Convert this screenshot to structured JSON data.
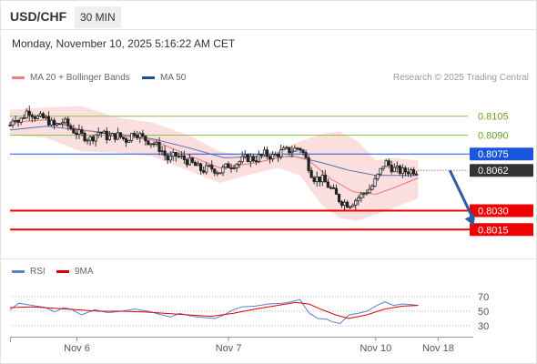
{
  "header": {
    "symbol": "USD/CHF",
    "timeframe": "30 MIN",
    "datetime": "Monday, November 10, 2025 5:16:22 AM CET"
  },
  "legend": {
    "main": [
      {
        "label": "MA 20 + Bollinger Bands",
        "color": "#f08080"
      },
      {
        "label": "MA 50",
        "color": "#1f4e96"
      }
    ],
    "rsi": [
      {
        "label": "RSI",
        "color": "#5b7fd6"
      },
      {
        "label": "9MA",
        "color": "#e00000"
      }
    ]
  },
  "credit": "Research © 2025 Trading Central",
  "chart_data": [
    {
      "type": "candlestick",
      "ylim": [
        0.7995,
        0.8125
      ],
      "x_ticks": [
        {
          "label": "Nov 6",
          "t": 0.15
        },
        {
          "label": "Nov 7",
          "t": 0.49
        },
        {
          "label": "Nov 10",
          "t": 0.82
        },
        {
          "label": "Nov 18",
          "t": 0.96
        }
      ],
      "levels": [
        {
          "value": 0.8105,
          "label": "0.8105",
          "color": "#8bc34a",
          "style": "thin",
          "text_color": "#6aa121"
        },
        {
          "value": 0.809,
          "label": "0.8090",
          "color": "#8bc34a",
          "style": "thin",
          "text_color": "#6aa121"
        },
        {
          "value": 0.8075,
          "label": "0.8075",
          "color": "#1a56db",
          "style": "badge",
          "text_color": "#ffffff"
        },
        {
          "value": 0.8062,
          "label": "0.8062",
          "color": "#333333",
          "style": "dotted",
          "text_color": "#ffffff"
        },
        {
          "value": 0.803,
          "label": "0.8030",
          "color": "#f00000",
          "style": "badge",
          "text_color": "#ffffff"
        },
        {
          "value": 0.8015,
          "label": "0.8015",
          "color": "#f00000",
          "style": "badge",
          "text_color": "#ffffff"
        }
      ],
      "projection": {
        "from": [
          0.97,
          0.8062
        ],
        "to": [
          1.04,
          0.8018
        ],
        "color": "#2d5aa8"
      },
      "price_path": [
        [
          0.0,
          0.8098
        ],
        [
          0.01,
          0.8106
        ],
        [
          0.02,
          0.81
        ],
        [
          0.04,
          0.811
        ],
        [
          0.06,
          0.8104
        ],
        [
          0.08,
          0.8103
        ],
        [
          0.1,
          0.8097
        ],
        [
          0.12,
          0.8101
        ],
        [
          0.14,
          0.8094
        ],
        [
          0.16,
          0.809
        ],
        [
          0.18,
          0.8087
        ],
        [
          0.2,
          0.8093
        ],
        [
          0.22,
          0.8088
        ],
        [
          0.24,
          0.809
        ],
        [
          0.26,
          0.8086
        ],
        [
          0.28,
          0.8093
        ],
        [
          0.3,
          0.8087
        ],
        [
          0.32,
          0.8084
        ],
        [
          0.34,
          0.8078
        ],
        [
          0.355,
          0.807
        ],
        [
          0.37,
          0.8074
        ],
        [
          0.39,
          0.8071
        ],
        [
          0.41,
          0.8067
        ],
        [
          0.43,
          0.8062
        ],
        [
          0.45,
          0.8064
        ],
        [
          0.47,
          0.8061
        ],
        [
          0.49,
          0.8066
        ],
        [
          0.51,
          0.8068
        ],
        [
          0.53,
          0.8072
        ],
        [
          0.55,
          0.8071
        ],
        [
          0.57,
          0.8075
        ],
        [
          0.59,
          0.8073
        ],
        [
          0.61,
          0.8077
        ],
        [
          0.63,
          0.8078
        ],
        [
          0.65,
          0.808
        ],
        [
          0.66,
          0.8074
        ],
        [
          0.67,
          0.8065
        ],
        [
          0.68,
          0.8056
        ],
        [
          0.7,
          0.8055
        ],
        [
          0.72,
          0.8047
        ],
        [
          0.74,
          0.8038
        ],
        [
          0.76,
          0.8035
        ],
        [
          0.78,
          0.804
        ],
        [
          0.8,
          0.8046
        ],
        [
          0.81,
          0.8048
        ],
        [
          0.83,
          0.8061
        ],
        [
          0.84,
          0.8069
        ],
        [
          0.86,
          0.8063
        ],
        [
          0.88,
          0.8061
        ],
        [
          0.9,
          0.8062
        ],
        [
          0.915,
          0.8062
        ]
      ],
      "ma20": [
        [
          0.0,
          0.81
        ],
        [
          0.08,
          0.8102
        ],
        [
          0.16,
          0.8094
        ],
        [
          0.24,
          0.809
        ],
        [
          0.32,
          0.8086
        ],
        [
          0.4,
          0.8074
        ],
        [
          0.47,
          0.8064
        ],
        [
          0.55,
          0.8068
        ],
        [
          0.63,
          0.8074
        ],
        [
          0.67,
          0.807
        ],
        [
          0.72,
          0.8055
        ],
        [
          0.77,
          0.8045
        ],
        [
          0.82,
          0.8043
        ],
        [
          0.86,
          0.8048
        ],
        [
          0.915,
          0.8056
        ]
      ],
      "ma50": [
        [
          0.0,
          0.8094
        ],
        [
          0.08,
          0.8097
        ],
        [
          0.16,
          0.8094
        ],
        [
          0.24,
          0.8091
        ],
        [
          0.32,
          0.8087
        ],
        [
          0.4,
          0.808
        ],
        [
          0.48,
          0.8072
        ],
        [
          0.56,
          0.8073
        ],
        [
          0.64,
          0.8073
        ],
        [
          0.7,
          0.8068
        ],
        [
          0.76,
          0.8062
        ],
        [
          0.82,
          0.8058
        ],
        [
          0.915,
          0.8058
        ]
      ],
      "bb_upper": [
        [
          0.0,
          0.811
        ],
        [
          0.08,
          0.8112
        ],
        [
          0.16,
          0.8113
        ],
        [
          0.24,
          0.8104
        ],
        [
          0.32,
          0.81
        ],
        [
          0.4,
          0.809
        ],
        [
          0.47,
          0.8077
        ],
        [
          0.53,
          0.8074
        ],
        [
          0.6,
          0.8078
        ],
        [
          0.65,
          0.8085
        ],
        [
          0.7,
          0.8091
        ],
        [
          0.74,
          0.8093
        ],
        [
          0.78,
          0.8085
        ],
        [
          0.82,
          0.807
        ],
        [
          0.86,
          0.8072
        ],
        [
          0.915,
          0.807
        ]
      ],
      "bb_lower": [
        [
          0.0,
          0.809
        ],
        [
          0.08,
          0.8088
        ],
        [
          0.16,
          0.8077
        ],
        [
          0.24,
          0.8076
        ],
        [
          0.32,
          0.8073
        ],
        [
          0.4,
          0.8062
        ],
        [
          0.47,
          0.8052
        ],
        [
          0.53,
          0.8058
        ],
        [
          0.6,
          0.8064
        ],
        [
          0.65,
          0.8058
        ],
        [
          0.7,
          0.8034
        ],
        [
          0.74,
          0.8024
        ],
        [
          0.78,
          0.8022
        ],
        [
          0.82,
          0.8027
        ],
        [
          0.86,
          0.8032
        ],
        [
          0.915,
          0.804
        ]
      ]
    },
    {
      "type": "line",
      "ylim": [
        20,
        80
      ],
      "y_ticks": [
        70,
        50,
        30
      ],
      "rsi": [
        [
          0.0,
          52
        ],
        [
          0.02,
          61
        ],
        [
          0.05,
          58
        ],
        [
          0.08,
          55
        ],
        [
          0.1,
          49
        ],
        [
          0.12,
          55
        ],
        [
          0.14,
          52
        ],
        [
          0.16,
          45
        ],
        [
          0.19,
          52
        ],
        [
          0.22,
          48
        ],
        [
          0.25,
          50
        ],
        [
          0.28,
          53
        ],
        [
          0.31,
          50
        ],
        [
          0.34,
          45
        ],
        [
          0.36,
          42
        ],
        [
          0.38,
          47
        ],
        [
          0.41,
          43
        ],
        [
          0.44,
          41
        ],
        [
          0.46,
          40
        ],
        [
          0.48,
          45
        ],
        [
          0.5,
          52
        ],
        [
          0.52,
          56
        ],
        [
          0.55,
          57
        ],
        [
          0.58,
          60
        ],
        [
          0.61,
          61
        ],
        [
          0.63,
          63
        ],
        [
          0.65,
          66
        ],
        [
          0.67,
          48
        ],
        [
          0.69,
          40
        ],
        [
          0.71,
          39
        ],
        [
          0.72,
          36
        ],
        [
          0.74,
          33
        ],
        [
          0.76,
          45
        ],
        [
          0.78,
          47
        ],
        [
          0.8,
          50
        ],
        [
          0.82,
          57
        ],
        [
          0.84,
          63
        ],
        [
          0.86,
          58
        ],
        [
          0.88,
          60
        ],
        [
          0.9,
          59
        ],
        [
          0.915,
          58
        ]
      ],
      "ma9": [
        [
          0.0,
          55
        ],
        [
          0.05,
          56
        ],
        [
          0.1,
          54
        ],
        [
          0.15,
          52
        ],
        [
          0.2,
          50
        ],
        [
          0.25,
          50
        ],
        [
          0.3,
          49
        ],
        [
          0.35,
          47
        ],
        [
          0.4,
          45
        ],
        [
          0.45,
          43
        ],
        [
          0.5,
          47
        ],
        [
          0.55,
          53
        ],
        [
          0.6,
          58
        ],
        [
          0.64,
          62
        ],
        [
          0.67,
          60
        ],
        [
          0.7,
          52
        ],
        [
          0.73,
          45
        ],
        [
          0.76,
          40
        ],
        [
          0.8,
          45
        ],
        [
          0.84,
          53
        ],
        [
          0.88,
          57
        ],
        [
          0.915,
          58
        ]
      ]
    }
  ]
}
